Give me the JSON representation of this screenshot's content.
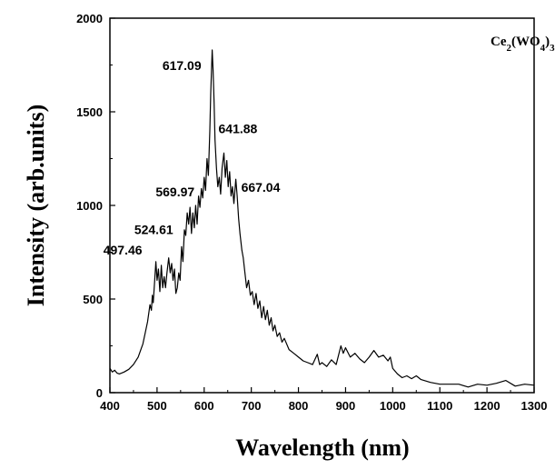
{
  "chart_data": {
    "type": "line",
    "xlabel": "Wavelength (nm)",
    "ylabel": "Intensity (arb.units)",
    "xlim": [
      400,
      1300
    ],
    "ylim": [
      0,
      2000
    ],
    "x_ticks": [
      400,
      500,
      600,
      700,
      800,
      900,
      1000,
      1100,
      1200,
      1300
    ],
    "y_ticks": [
      0,
      500,
      1000,
      1500,
      2000
    ],
    "grid": false,
    "legend_placement": "top-right",
    "legend": {
      "base": "Ce",
      "sub1": "2",
      "mid": "(WO",
      "sub2": "4",
      "close": ")",
      "sub3": "3"
    },
    "annotations": [
      {
        "text": "497.46",
        "x": 497.46,
        "y": 700
      },
      {
        "text": "524.61",
        "x": 524.61,
        "y": 720
      },
      {
        "text": "569.97",
        "x": 569.97,
        "y": 990
      },
      {
        "text": "617.09",
        "x": 617.09,
        "y": 1830
      },
      {
        "text": "641.88",
        "x": 641.88,
        "y": 1280
      },
      {
        "text": "667.04",
        "x": 667.04,
        "y": 1140
      }
    ],
    "series": [
      {
        "color": "#000000",
        "points": [
          [
            400,
            130
          ],
          [
            405,
            110
          ],
          [
            410,
            120
          ],
          [
            415,
            105
          ],
          [
            420,
            100
          ],
          [
            430,
            110
          ],
          [
            440,
            125
          ],
          [
            450,
            150
          ],
          [
            460,
            190
          ],
          [
            470,
            260
          ],
          [
            475,
            320
          ],
          [
            480,
            380
          ],
          [
            485,
            470
          ],
          [
            488,
            440
          ],
          [
            490,
            520
          ],
          [
            492,
            480
          ],
          [
            495,
            600
          ],
          [
            497.46,
            700
          ],
          [
            500,
            600
          ],
          [
            503,
            660
          ],
          [
            506,
            540
          ],
          [
            509,
            680
          ],
          [
            512,
            560
          ],
          [
            515,
            620
          ],
          [
            518,
            560
          ],
          [
            521,
            640
          ],
          [
            524.61,
            720
          ],
          [
            528,
            640
          ],
          [
            531,
            690
          ],
          [
            534,
            600
          ],
          [
            537,
            660
          ],
          [
            540,
            530
          ],
          [
            543,
            560
          ],
          [
            546,
            640
          ],
          [
            549,
            600
          ],
          [
            552,
            780
          ],
          [
            555,
            700
          ],
          [
            558,
            870
          ],
          [
            561,
            840
          ],
          [
            564,
            960
          ],
          [
            567,
            900
          ],
          [
            569.97,
            990
          ],
          [
            573,
            850
          ],
          [
            576,
            960
          ],
          [
            579,
            880
          ],
          [
            582,
            1000
          ],
          [
            585,
            900
          ],
          [
            588,
            1050
          ],
          [
            591,
            990
          ],
          [
            594,
            1090
          ],
          [
            597,
            1040
          ],
          [
            600,
            1150
          ],
          [
            603,
            1080
          ],
          [
            606,
            1250
          ],
          [
            609,
            1160
          ],
          [
            612,
            1400
          ],
          [
            614,
            1600
          ],
          [
            617.09,
            1830
          ],
          [
            619,
            1720
          ],
          [
            621,
            1550
          ],
          [
            623,
            1350
          ],
          [
            626,
            1200
          ],
          [
            629,
            1100
          ],
          [
            632,
            1150
          ],
          [
            635,
            1060
          ],
          [
            638,
            1200
          ],
          [
            641.88,
            1280
          ],
          [
            645,
            1150
          ],
          [
            648,
            1240
          ],
          [
            651,
            1100
          ],
          [
            654,
            1180
          ],
          [
            657,
            1050
          ],
          [
            660,
            1100
          ],
          [
            663,
            1010
          ],
          [
            667.04,
            1140
          ],
          [
            670,
            1050
          ],
          [
            673,
            930
          ],
          [
            676,
            850
          ],
          [
            680,
            760
          ],
          [
            683,
            720
          ],
          [
            686,
            650
          ],
          [
            690,
            560
          ],
          [
            694,
            600
          ],
          [
            698,
            520
          ],
          [
            702,
            540
          ],
          [
            706,
            470
          ],
          [
            710,
            530
          ],
          [
            714,
            450
          ],
          [
            718,
            490
          ],
          [
            722,
            400
          ],
          [
            726,
            460
          ],
          [
            730,
            390
          ],
          [
            734,
            440
          ],
          [
            738,
            360
          ],
          [
            742,
            400
          ],
          [
            746,
            330
          ],
          [
            750,
            360
          ],
          [
            755,
            300
          ],
          [
            760,
            320
          ],
          [
            765,
            270
          ],
          [
            770,
            290
          ],
          [
            780,
            230
          ],
          [
            790,
            210
          ],
          [
            800,
            190
          ],
          [
            810,
            170
          ],
          [
            820,
            160
          ],
          [
            830,
            150
          ],
          [
            840,
            205
          ],
          [
            845,
            150
          ],
          [
            850,
            160
          ],
          [
            860,
            140
          ],
          [
            870,
            175
          ],
          [
            880,
            150
          ],
          [
            890,
            250
          ],
          [
            895,
            210
          ],
          [
            900,
            240
          ],
          [
            910,
            190
          ],
          [
            920,
            210
          ],
          [
            930,
            180
          ],
          [
            940,
            160
          ],
          [
            950,
            190
          ],
          [
            960,
            225
          ],
          [
            970,
            190
          ],
          [
            980,
            200
          ],
          [
            990,
            170
          ],
          [
            995,
            190
          ],
          [
            1000,
            130
          ],
          [
            1010,
            100
          ],
          [
            1020,
            80
          ],
          [
            1030,
            90
          ],
          [
            1040,
            75
          ],
          [
            1050,
            90
          ],
          [
            1060,
            70
          ],
          [
            1080,
            55
          ],
          [
            1100,
            45
          ],
          [
            1120,
            45
          ],
          [
            1140,
            45
          ],
          [
            1160,
            30
          ],
          [
            1180,
            45
          ],
          [
            1200,
            40
          ],
          [
            1220,
            50
          ],
          [
            1240,
            65
          ],
          [
            1260,
            35
          ],
          [
            1280,
            45
          ],
          [
            1300,
            40
          ]
        ]
      }
    ]
  }
}
